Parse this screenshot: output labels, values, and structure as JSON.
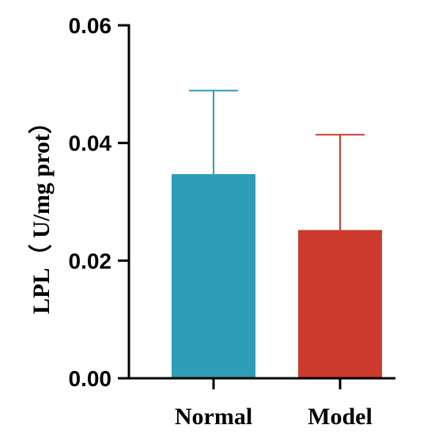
{
  "chart_data": {
    "type": "bar",
    "title": "",
    "xlabel": "",
    "ylabel": "LPL（ U/mg prot）",
    "categories": [
      "Normal",
      "Model"
    ],
    "values": [
      0.0347,
      0.0252
    ],
    "error_upper": [
      0.0489,
      0.0414
    ],
    "colors": [
      "#2e9db6",
      "#cc3a2e"
    ],
    "ylim": [
      0,
      0.06
    ],
    "yticks": [
      {
        "value": 0,
        "label": "0.00"
      },
      {
        "value": 0.02,
        "label": "0.02"
      },
      {
        "value": 0.04,
        "label": "0.04"
      },
      {
        "value": 0.06,
        "label": "0.06"
      }
    ],
    "grid": false,
    "legend": "none"
  }
}
